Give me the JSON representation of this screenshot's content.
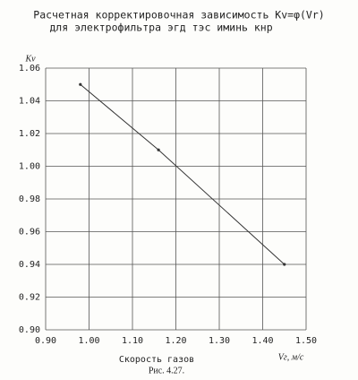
{
  "chart_data": {
    "type": "line",
    "title": "Расчетная корректировочная зависимость Kv=φ(Vr)",
    "subtitle": "для электрофильтра эгд тэс иминь кнр",
    "y_label": "Kv",
    "x_label": "Скорость газов",
    "x_unit_label": "Vг, м/с",
    "caption": "Рис. 4.27.",
    "x": [
      0.98,
      1.16,
      1.45
    ],
    "series": [
      {
        "color": "#333333",
        "values": [
          1.05,
          1.01,
          0.94
        ]
      }
    ],
    "xlim": [
      0.9,
      1.5
    ],
    "xticks": [
      {
        "value": 0.9,
        "label": "0.90"
      },
      {
        "value": 1.0,
        "label": "1.00"
      },
      {
        "value": 1.1,
        "label": "1.10"
      },
      {
        "value": 1.2,
        "label": "1.20"
      },
      {
        "value": 1.3,
        "label": "1.30"
      },
      {
        "value": 1.4,
        "label": "1.40"
      },
      {
        "value": 1.5,
        "label": "1.50"
      }
    ],
    "ylim": [
      0.9,
      1.06
    ],
    "yticks": [
      {
        "value": 0.9,
        "label": "0.90"
      },
      {
        "value": 0.92,
        "label": "0.92"
      },
      {
        "value": 0.94,
        "label": "0.94"
      },
      {
        "value": 0.96,
        "label": "0.96"
      },
      {
        "value": 0.98,
        "label": "0.98"
      },
      {
        "value": 1.0,
        "label": "1.00"
      },
      {
        "value": 1.02,
        "label": "1.02"
      },
      {
        "value": 1.04,
        "label": "1.04"
      },
      {
        "value": 1.06,
        "label": "1.06"
      }
    ],
    "grid": true
  }
}
